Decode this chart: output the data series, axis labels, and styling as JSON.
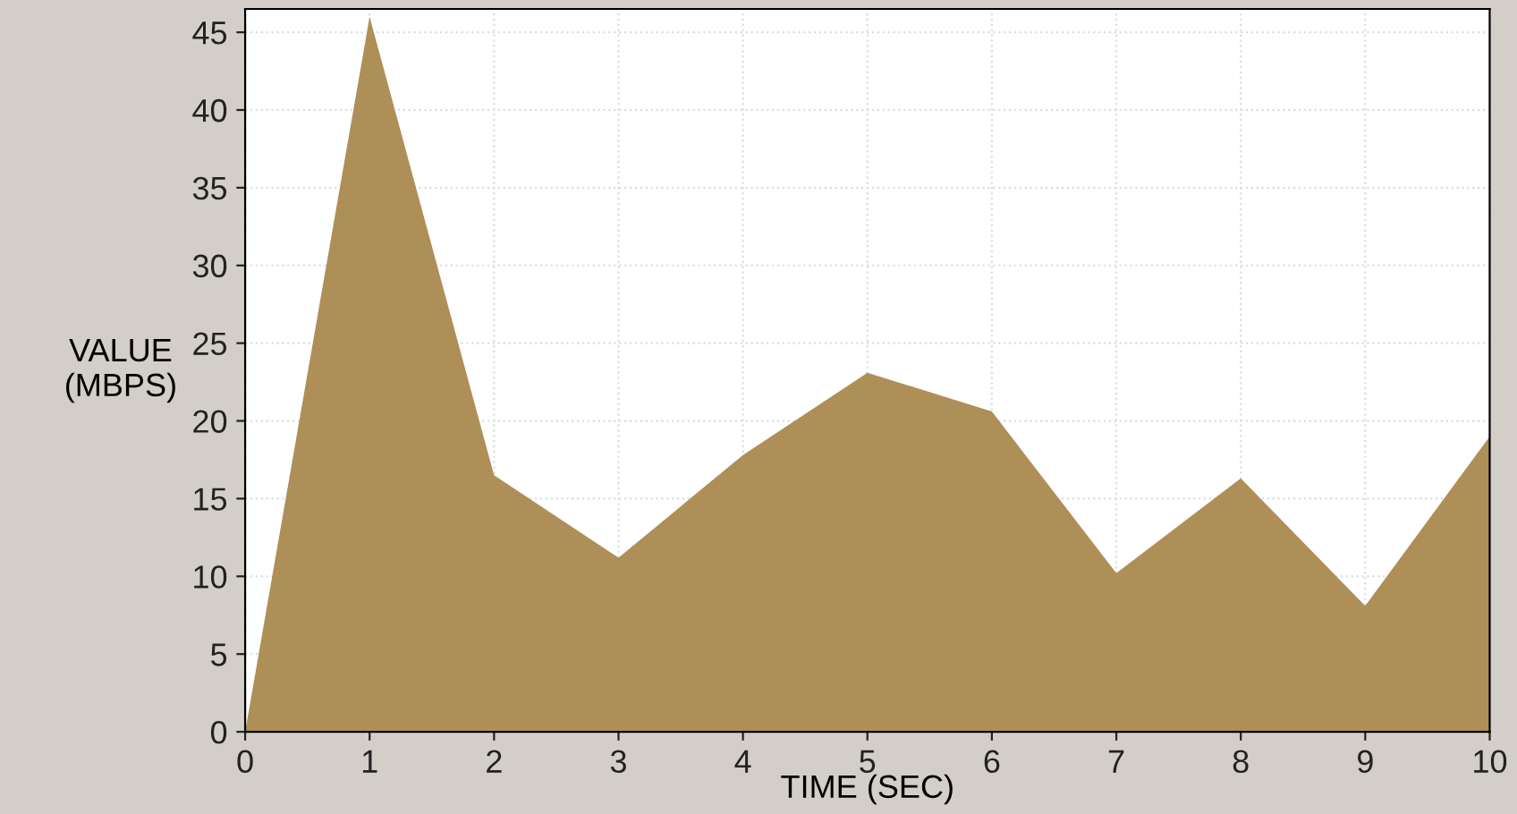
{
  "chart_data": {
    "type": "area",
    "xlabel": "TIME (SEC)",
    "ylabel": "VALUE\n(MBPS)",
    "x": [
      0,
      1,
      2,
      3,
      4,
      5,
      6,
      7,
      8,
      9,
      10
    ],
    "series": [
      {
        "color": "#ae8f58",
        "values": [
          0,
          46,
          16.5,
          11.2,
          17.8,
          23.1,
          20.6,
          10.2,
          16.3,
          8.1,
          19
        ]
      }
    ],
    "xlim": [
      0,
      10
    ],
    "ylim": [
      0,
      46.5
    ],
    "xticks": [
      0,
      1,
      2,
      3,
      4,
      5,
      6,
      7,
      8,
      9,
      10
    ],
    "yticks": [
      0,
      5,
      10,
      15,
      20,
      25,
      30,
      35,
      40,
      45
    ],
    "grid": true
  }
}
